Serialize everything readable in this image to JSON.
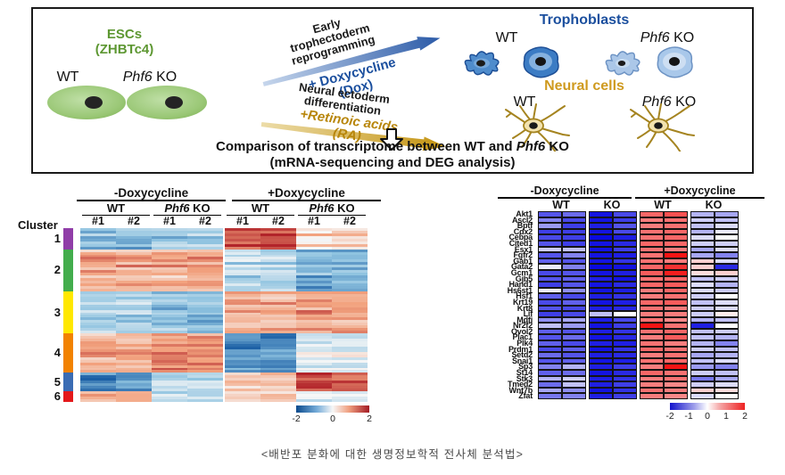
{
  "top_panel": {
    "esc_line1": "ESCs",
    "esc_line2": "(ZHBTc4)",
    "wt": "WT",
    "phf6": "Phf6",
    "ko": " KO",
    "reprogram_lines": [
      "Early",
      "trophectoderm",
      "reprogramming"
    ],
    "dox_label": "+ Doxycycline",
    "dox_sub": "(Dox)",
    "neural_lines": [
      "Neural ectoderm",
      "differentiation"
    ],
    "ra_label": "+Retinoic acids",
    "ra_sub": "(RA)",
    "trophoblasts_title": "Trophoblasts",
    "neural_title": "Neural cells",
    "comparison_pre": "Comparison of transcriptome between WT and ",
    "comparison_phf6": "Phf6",
    "comparison_post": " KO",
    "comparison_line2": "(mRNA-sequencing and DEG analysis)"
  },
  "caption": "<배반포 분화에 대한 생명정보학적 전사체 분석법>",
  "colors": {
    "green_label": "#5d9732",
    "blue_label": "#1b4f9e",
    "gold_label": "#b8860b"
  },
  "chart_data": [
    {
      "type": "heatmap",
      "title": "Hierarchically clustered DEG heatmap (z-score)",
      "condition_headers": [
        "-Doxycycline",
        "+Doxycycline"
      ],
      "group_headers": [
        {
          "i": "",
          "t": "WT"
        },
        {
          "i": "Phf6",
          "t": " KO"
        },
        {
          "i": "",
          "t": "WT"
        },
        {
          "i": "Phf6",
          "t": " KO"
        }
      ],
      "replicate_labels": [
        "#1",
        "#2",
        "#1",
        "#2",
        "#1",
        "#2",
        "#1",
        "#2"
      ],
      "cluster_axis_label": "Cluster",
      "colorbar_ticks": [
        "-2",
        "0",
        "2"
      ],
      "colorbar_range": [
        -2,
        2
      ],
      "n_rows_displayed": 66,
      "clusters": [
        {
          "label": "1",
          "color": "#903da8",
          "rows": 8,
          "profile": [
            -1.0,
            -1.0,
            -0.8,
            -0.8,
            1.7,
            1.7,
            0.45,
            0.45
          ]
        },
        {
          "label": "2",
          "color": "#43ad4c",
          "rows": 16,
          "profile": [
            0.9,
            0.9,
            0.85,
            0.85,
            -0.55,
            -0.55,
            -1.1,
            -1.1
          ]
        },
        {
          "label": "3",
          "color": "#ffe800",
          "rows": 16,
          "profile": [
            -0.7,
            -0.7,
            -1.0,
            -1.0,
            0.75,
            0.75,
            1.0,
            1.0
          ]
        },
        {
          "label": "4",
          "color": "#f28200",
          "rows": 15,
          "profile": [
            0.8,
            0.8,
            1.15,
            1.15,
            -1.5,
            -1.5,
            -0.35,
            -0.35
          ]
        },
        {
          "label": "5",
          "color": "#3a6cb4",
          "rows": 7,
          "profile": [
            -1.6,
            -1.6,
            -0.7,
            -0.7,
            0.35,
            0.35,
            1.55,
            1.55
          ]
        },
        {
          "label": "6",
          "color": "#e4181b",
          "rows": 4,
          "profile": [
            0.8,
            0.8,
            -0.5,
            -0.5,
            0.6,
            0.6,
            -0.25,
            -0.25
          ]
        }
      ]
    },
    {
      "type": "heatmap",
      "title": "Trophoblast gene expression heatmap",
      "condition_headers": [
        "-Doxycycline",
        "+Doxycycline"
      ],
      "group_headers": [
        "WT",
        "KO",
        "WT",
        "KO"
      ],
      "colorbar_ticks": [
        "-2",
        "-1",
        "0",
        "1",
        "2"
      ],
      "colorbar_range": [
        -2,
        2
      ],
      "genes": [
        "Akt1",
        "Ascl2",
        "Bptf",
        "Cdx2",
        "Cebpa",
        "Cited1",
        "Esx1",
        "Fgfr2",
        "Gab1",
        "Gata2",
        "Gcm1",
        "Gjb5",
        "Hand1",
        "Hs6st1",
        "Hsf1",
        "Krt19",
        "Krt8",
        "Lif",
        "Mdfi",
        "Nr2f2",
        "Ovol2",
        "Plac1",
        "Plk4",
        "Prdm1",
        "Setd2",
        "Snai1",
        "Sp3",
        "St14",
        "Stk3",
        "Tmed2",
        "Wnt7b",
        "Zfat"
      ],
      "values": [
        [
          -1.3,
          -1.1,
          -1.9,
          -1.4,
          1.2,
          1.4,
          -0.5,
          -0.6
        ],
        [
          -0.9,
          -1.4,
          -1.9,
          -1.5,
          1.0,
          1.1,
          -0.3,
          -0.4
        ],
        [
          -0.7,
          -1.5,
          -1.8,
          -1.3,
          1.0,
          1.1,
          -0.4,
          -0.2
        ],
        [
          -1.5,
          -1.5,
          -1.9,
          -1.4,
          1.1,
          1.2,
          -0.5,
          -0.1
        ],
        [
          -1.4,
          -1.5,
          -2.0,
          -1.8,
          1.1,
          1.2,
          -0.2,
          0.0
        ],
        [
          -1.3,
          -1.5,
          -1.9,
          -1.7,
          1.2,
          1.2,
          -0.3,
          -0.3
        ],
        [
          -0.3,
          -0.4,
          -1.9,
          -1.5,
          1.1,
          1.0,
          -0.6,
          -0.2
        ],
        [
          -1.3,
          -0.9,
          -1.9,
          -1.8,
          1.1,
          2.0,
          -0.6,
          -0.9
        ],
        [
          -1.2,
          -1.3,
          -1.9,
          -1.6,
          1.1,
          1.0,
          0.3,
          -0.2
        ],
        [
          -0.1,
          -0.9,
          -2.0,
          -1.9,
          1.2,
          1.7,
          0.3,
          -1.7
        ],
        [
          -1.4,
          -1.3,
          -1.9,
          -1.8,
          1.3,
          1.9,
          0.2,
          0.3
        ],
        [
          -1.3,
          -1.2,
          -1.8,
          -1.9,
          1.1,
          1.2,
          -0.4,
          -0.3
        ],
        [
          -1.5,
          -1.3,
          -1.9,
          -1.7,
          1.2,
          1.3,
          -0.2,
          -0.5
        ],
        [
          -0.1,
          -0.8,
          -1.9,
          -1.8,
          1.0,
          1.2,
          -0.2,
          -0.3
        ],
        [
          -1.2,
          -1.4,
          -1.8,
          -1.6,
          1.0,
          1.1,
          -0.3,
          0.0
        ],
        [
          -1.4,
          -1.2,
          -1.9,
          -1.8,
          1.2,
          1.3,
          -0.4,
          -0.2
        ],
        [
          -1.3,
          -1.4,
          -1.8,
          -1.7,
          1.1,
          1.0,
          -0.3,
          -0.2
        ],
        [
          -1.5,
          -1.4,
          -0.4,
          0.0,
          1.0,
          1.0,
          -0.3,
          0.1
        ],
        [
          -0.8,
          -0.6,
          -1.8,
          -1.4,
          1.1,
          0.9,
          -0.5,
          -0.4
        ],
        [
          -0.4,
          -0.7,
          -1.9,
          -1.5,
          2.0,
          1.1,
          -1.8,
          0.0
        ],
        [
          -1.2,
          -1.3,
          -1.8,
          -1.6,
          1.1,
          1.2,
          -0.4,
          -0.3
        ],
        [
          -1.3,
          -1.1,
          -1.9,
          -1.7,
          1.0,
          1.3,
          -0.4,
          -0.5
        ],
        [
          -1.2,
          -1.4,
          -1.8,
          -1.8,
          1.1,
          1.0,
          -0.5,
          -0.9
        ],
        [
          -1.4,
          -1.2,
          -1.9,
          -1.6,
          1.2,
          1.1,
          -0.3,
          -0.4
        ],
        [
          -1.1,
          -1.3,
          -1.8,
          -1.7,
          1.0,
          1.1,
          -0.6,
          -0.5
        ],
        [
          -1.3,
          -1.2,
          -1.9,
          -1.8,
          1.1,
          1.2,
          -0.4,
          -0.2
        ],
        [
          -0.9,
          -0.5,
          -1.8,
          -1.5,
          1.0,
          2.0,
          -0.7,
          -0.9
        ],
        [
          -1.2,
          -1.1,
          -1.9,
          -1.7,
          1.2,
          1.1,
          -0.3,
          -0.4
        ],
        [
          -0.5,
          -0.3,
          -1.8,
          -1.6,
          1.0,
          1.1,
          -1.0,
          -0.6
        ],
        [
          -1.1,
          -0.4,
          -1.8,
          -1.5,
          1.0,
          0.9,
          -0.3,
          -0.2
        ],
        [
          -0.6,
          -0.8,
          -1.9,
          -1.6,
          1.1,
          1.0,
          0.3,
          0.2
        ],
        [
          -1.0,
          -0.9,
          -1.8,
          -1.5,
          1.0,
          0.9,
          -0.2,
          0.0
        ]
      ]
    }
  ]
}
